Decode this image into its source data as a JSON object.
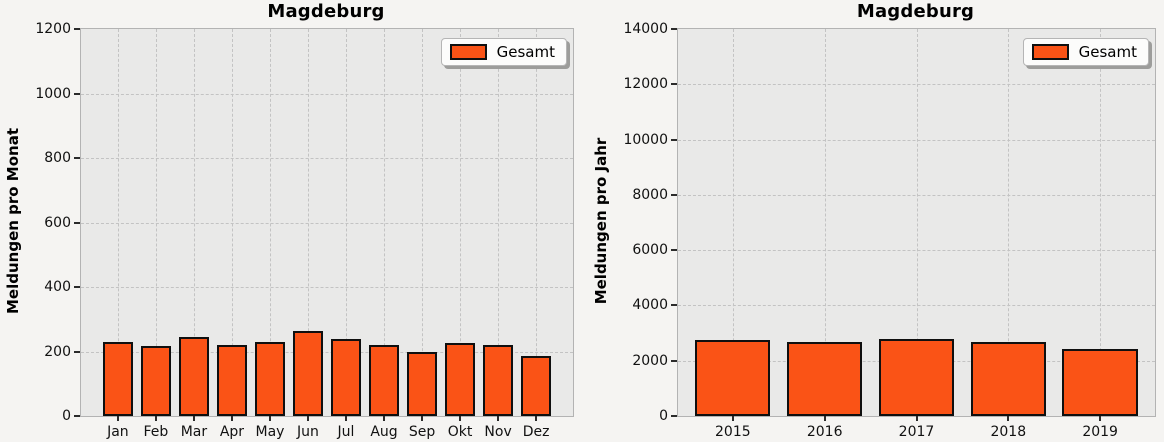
{
  "style": {
    "figure_background": "#f5f4f2",
    "axes_background": "#e9e9e8",
    "grid_color": "#c3c3c3",
    "spine_color": "#b3b3b3",
    "bar_fill": "#fa5316",
    "bar_edge": "#0f0f0f"
  },
  "chart_data": [
    {
      "type": "bar",
      "title": "Magdeburg",
      "ylabel": "Meldungen pro Monat",
      "xlabel": "",
      "legend": [
        "Gesamt"
      ],
      "legend_position": "upper right",
      "grid": true,
      "categories": [
        "Jan",
        "Feb",
        "Mar",
        "Apr",
        "May",
        "Jun",
        "Jul",
        "Aug",
        "Sep",
        "Okt",
        "Nov",
        "Dez"
      ],
      "values": [
        228,
        216,
        245,
        219,
        230,
        265,
        240,
        221,
        199,
        226,
        220,
        187
      ],
      "ylim": [
        0,
        1200
      ],
      "yticks": [
        0,
        200,
        400,
        600,
        800,
        1000,
        1200
      ],
      "bar_color": "#fa5316",
      "bar_edge_color": "#0f0f0f",
      "x_margin_frac": 0.075,
      "bar_width_frac": 0.78
    },
    {
      "type": "bar",
      "title": "Magdeburg",
      "ylabel": "Meldungen pro Jahr",
      "xlabel": "",
      "legend": [
        "Gesamt"
      ],
      "legend_position": "upper right",
      "grid": true,
      "categories": [
        "2015",
        "2016",
        "2017",
        "2018",
        "2019"
      ],
      "values": [
        2740,
        2690,
        2770,
        2660,
        2420
      ],
      "ylim": [
        0,
        14000
      ],
      "yticks": [
        0,
        2000,
        4000,
        6000,
        8000,
        10000,
        12000,
        14000
      ],
      "bar_color": "#fa5316",
      "bar_edge_color": "#0f0f0f",
      "x_margin_frac": 0.115,
      "bar_width_frac": 0.82
    }
  ]
}
